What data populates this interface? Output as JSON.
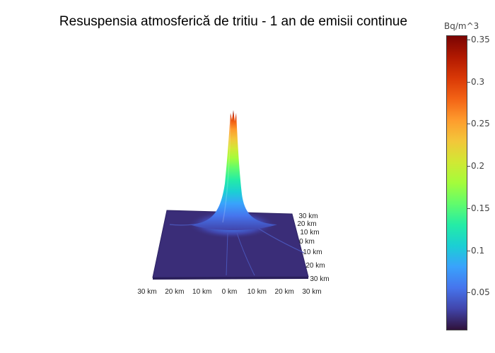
{
  "chart_data": {
    "type": "surface",
    "title": "Resuspensia atmosferică de tritiu - 1 an de emisii continue",
    "colorbar": {
      "title": "Bq/m^3",
      "ticks": [
        "0.05",
        "0.1",
        "0.15",
        "0.2",
        "0.25",
        "0.3",
        "0.35"
      ],
      "tick_values": [
        0.05,
        0.1,
        0.15,
        0.2,
        0.25,
        0.3,
        0.35
      ],
      "range": [
        0.005,
        0.355
      ],
      "colorscale": [
        "#30123b",
        "#4145ab",
        "#4675ed",
        "#39a2fc",
        "#1bcfd4",
        "#24eca6",
        "#61fc6c",
        "#a4fc3b",
        "#d1e834",
        "#f3c63a",
        "#fe9b2d",
        "#f36315",
        "#d93806",
        "#b11901",
        "#7a0402"
      ]
    },
    "x_axis": {
      "ticks": [
        "30 km",
        "20 km",
        "10 km",
        "0 km",
        "10 km",
        "20 km",
        "30 km"
      ],
      "range_km": [
        -30,
        30
      ]
    },
    "y_axis": {
      "ticks": [
        "30 km",
        "20 km",
        "10 km",
        "0 km",
        "10 km",
        "20 km",
        "30 km"
      ],
      "range_km": [
        -30,
        30
      ]
    },
    "z_range": [
      0,
      0.35
    ],
    "peak": {
      "x_km": 0,
      "y_km": 0,
      "value": 0.35
    }
  }
}
